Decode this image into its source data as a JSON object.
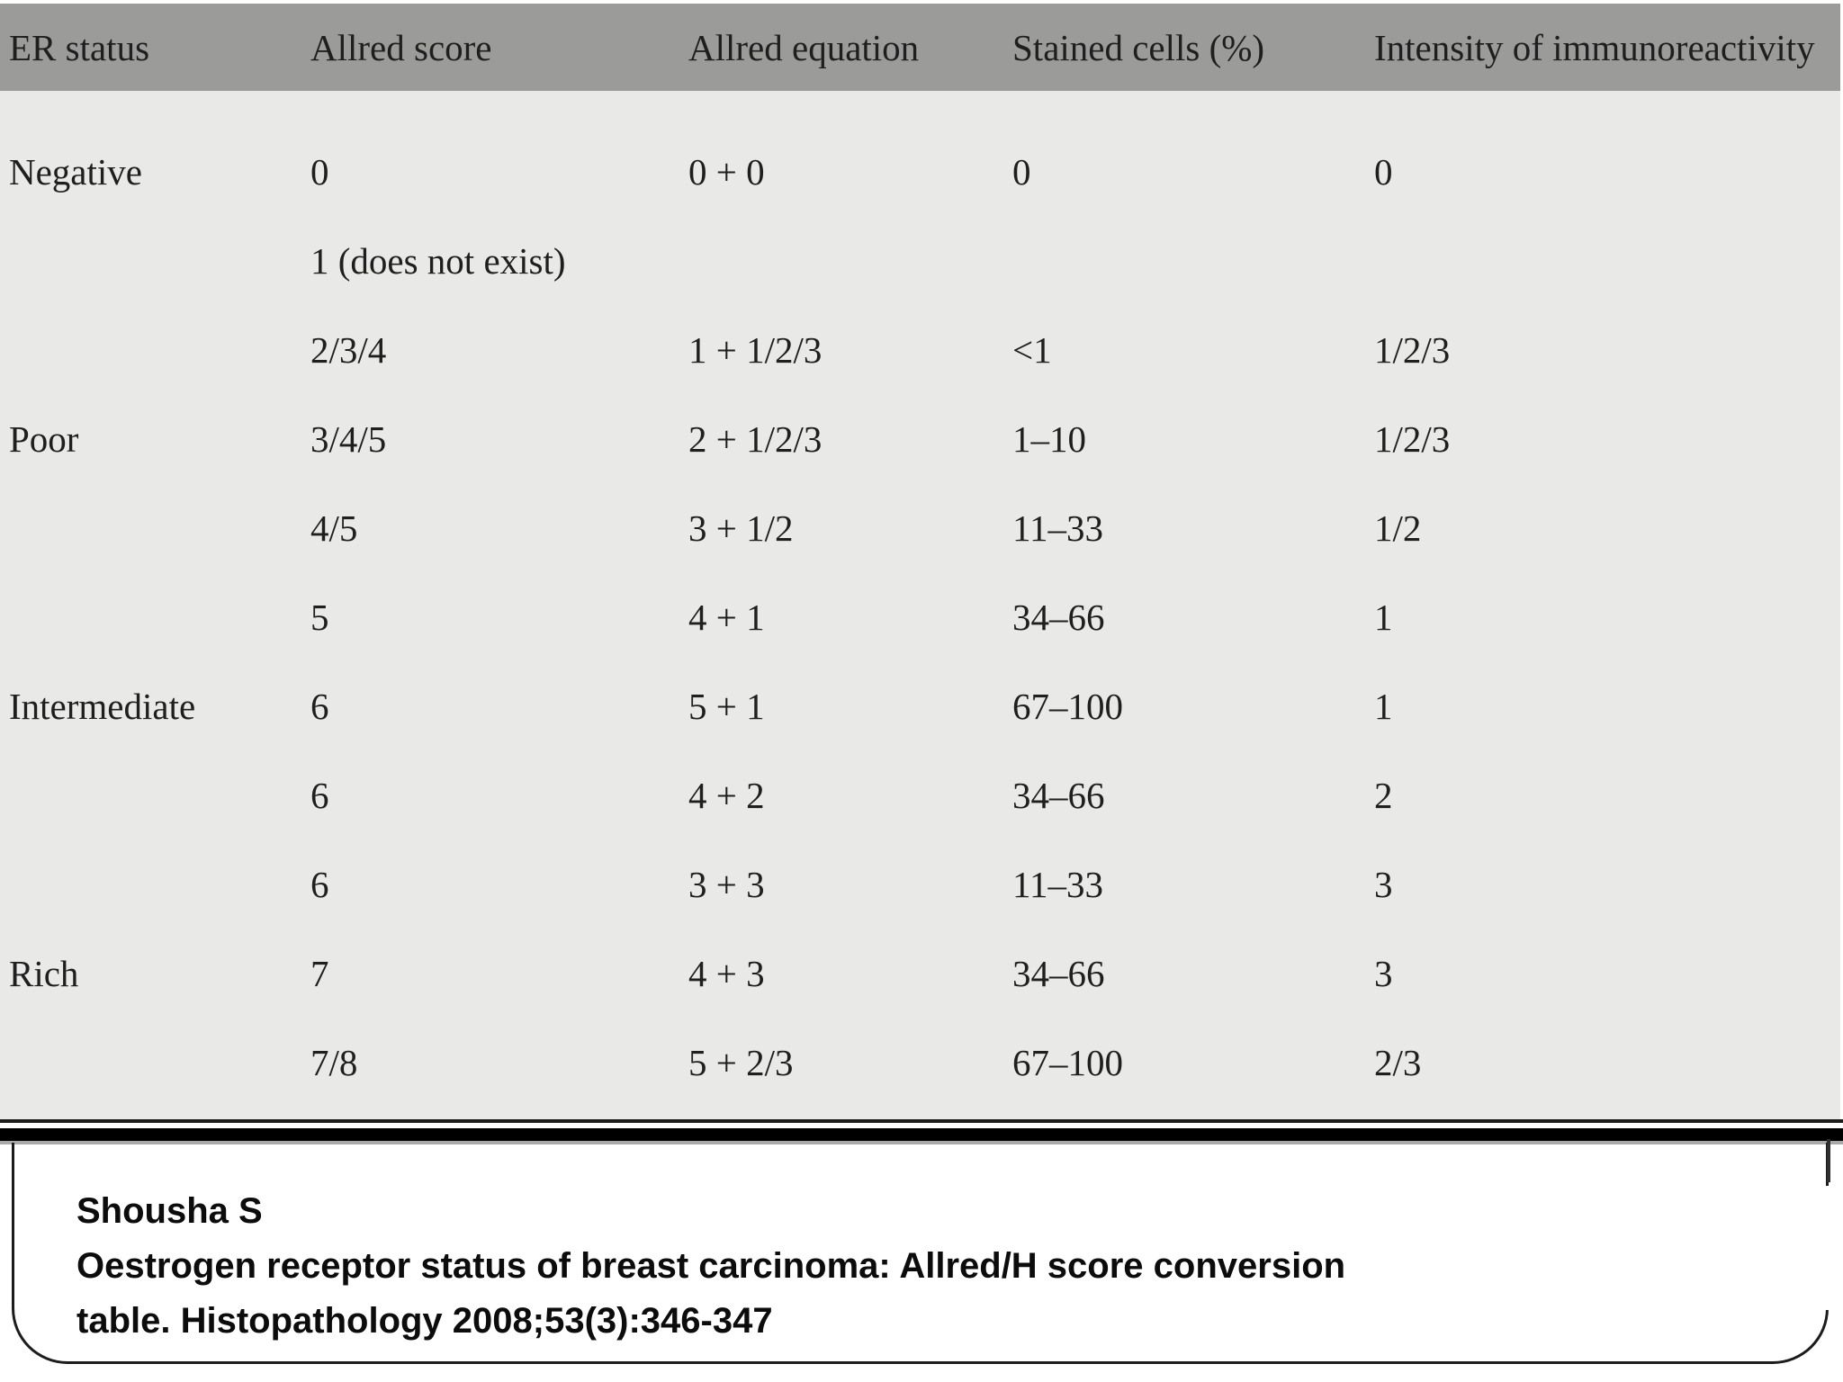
{
  "slide": {
    "table": {
      "headers": [
        "ER status",
        "Allred score",
        "Allred equation",
        "Stained cells (%)",
        "Intensity of immunoreactivity"
      ],
      "rows": [
        [
          "Negative",
          "0",
          "0 + 0",
          "0",
          "0"
        ],
        [
          "",
          "1 (does not exist)",
          "",
          "",
          ""
        ],
        [
          "",
          "2/3/4",
          "1 + 1/2/3",
          "<1",
          "1/2/3"
        ],
        [
          "Poor",
          "3/4/5",
          "2 + 1/2/3",
          "1–10",
          "1/2/3"
        ],
        [
          "",
          "4/5",
          "3 + 1/2",
          "11–33",
          "1/2"
        ],
        [
          "",
          "5",
          "4 + 1",
          "34–66",
          "1"
        ],
        [
          "Intermediate",
          "6",
          "5 + 1",
          "67–100",
          "1"
        ],
        [
          "",
          "6",
          "4 + 2",
          "34–66",
          "2"
        ],
        [
          "",
          "6",
          "3 + 3",
          "11–33",
          "3"
        ],
        [
          "Rich",
          "7",
          "4 + 3",
          "34–66",
          "3"
        ],
        [
          "",
          "7/8",
          "5 + 2/3",
          "67–100",
          "2/3"
        ]
      ]
    },
    "citation": {
      "author": "Shousha S",
      "title": "Oestrogen receptor status of breast carcinoma: Allred/H score conversion",
      "journal": "table. Histopathology 2008;53(3):346-347"
    },
    "colors": {
      "table_header_bg": "#9b9b9a",
      "table_body_bg": "#e9e9e7",
      "rule_black": "#000000",
      "text": "#1f1f1f"
    }
  }
}
